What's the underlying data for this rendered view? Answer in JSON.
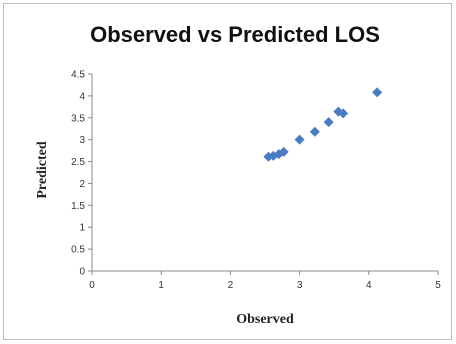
{
  "chart_data": {
    "type": "scatter",
    "title": "Observed vs Predicted LOS",
    "xlabel": "Observed",
    "ylabel": "Predicted",
    "xlim": [
      0,
      5
    ],
    "ylim": [
      0,
      4.5
    ],
    "x_ticks": [
      "0",
      "1",
      "2",
      "3",
      "4",
      "5"
    ],
    "y_ticks": [
      "0",
      "0.5",
      "1",
      "1.5",
      "2",
      "2.5",
      "3",
      "3.5",
      "4",
      "4.5"
    ],
    "grid": false,
    "legend": "none",
    "marker": "diamond",
    "color": "#4a7cc4",
    "series": [
      {
        "x": [
          2.55,
          2.62,
          2.7,
          2.77,
          3.0,
          3.22,
          3.42,
          3.56,
          3.63,
          4.12
        ],
        "y": [
          2.61,
          2.63,
          2.67,
          2.72,
          3.0,
          3.18,
          3.4,
          3.64,
          3.6,
          4.08
        ]
      }
    ]
  }
}
